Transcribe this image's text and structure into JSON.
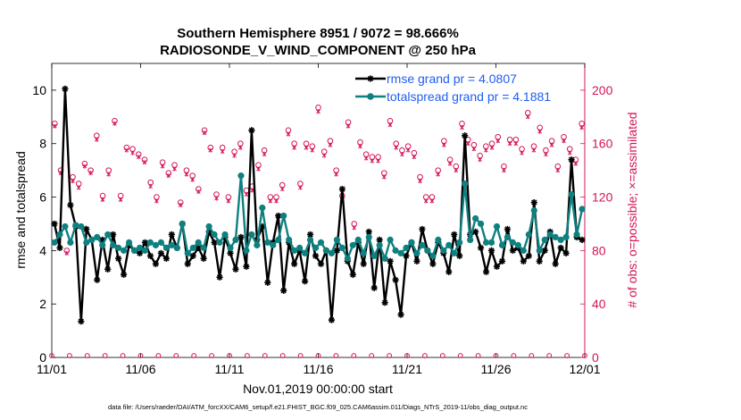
{
  "chart_data": {
    "type": "line",
    "title_line1": "Southern Hemisphere 8951 / 9072 = 98.666%",
    "title_line2": "RADIOSONDE_V_WIND_COMPONENT @ 250 hPa",
    "xlabel": "Nov.01,2019 00:00:00 start",
    "ylabel": "rmse and totalspread",
    "y2label": "# of obs: o=possible; ×=assimilated",
    "footnote": "data file: /Users/raeder/DAI/ATM_forcXX/CAM6_setup/f.e21.FHIST_BGC.f09_025.CAM6assim.011/Diags_NTrS_2019-11/obs_diag_output.nc",
    "xlim": [
      0,
      30
    ],
    "ylim": [
      0,
      11
    ],
    "y2lim": [
      0,
      220
    ],
    "x_ticks": [
      0,
      5,
      10,
      15,
      20,
      25,
      30
    ],
    "x_tick_labels": [
      "11/01",
      "11/06",
      "11/11",
      "11/16",
      "11/21",
      "11/26",
      "12/01"
    ],
    "y_ticks": [
      0,
      2,
      4,
      6,
      8,
      10
    ],
    "y_tick_labels": [
      "0",
      "2",
      "4",
      "6",
      "8",
      "10"
    ],
    "y2_ticks": [
      0,
      40,
      80,
      120,
      160,
      200
    ],
    "y2_tick_labels": [
      "0",
      "40",
      "80",
      "120",
      "160",
      "200"
    ],
    "legend": [
      {
        "label": "rmse grand pr = 4.0807",
        "color": "#000000",
        "marker": "star"
      },
      {
        "label": "totalspread grand pr = 4.1881",
        "color": "#0f8080",
        "marker": "circle"
      }
    ],
    "series": [
      {
        "name": "rmse",
        "color": "#000000",
        "values": [
          5.0,
          4.1,
          10.05,
          5.7,
          4.9,
          1.35,
          4.8,
          4.4,
          2.9,
          4.4,
          3.3,
          4.6,
          3.7,
          3.1,
          4.2,
          4.0,
          3.9,
          4.3,
          3.8,
          3.5,
          3.9,
          3.7,
          4.6,
          4.1,
          5.0,
          3.5,
          3.8,
          4.1,
          3.7,
          4.7,
          4.3,
          3.0,
          4.5,
          3.9,
          3.3,
          4.5,
          3.4,
          8.5,
          4.4,
          4.9,
          2.8,
          4.3,
          5.3,
          2.5,
          4.3,
          3.5,
          4.0,
          2.85,
          4.6,
          3.8,
          3.5,
          4.0,
          1.4,
          4.0,
          6.3,
          3.6,
          3.1,
          4.3,
          3.5,
          4.7,
          2.6,
          4.4,
          2.05,
          3.6,
          2.9,
          1.6,
          3.8,
          4.3,
          3.6,
          4.8,
          4.0,
          3.5,
          4.3,
          3.9,
          3.2,
          4.6,
          3.8,
          8.3,
          4.6,
          4.7,
          4.1,
          3.2,
          4.0,
          3.4,
          3.6,
          4.8,
          4.0,
          4.1,
          3.6,
          3.8,
          5.8,
          3.6,
          4.0,
          4.7,
          3.5,
          4.1,
          3.9,
          7.4,
          4.5,
          4.4
        ]
      },
      {
        "name": "totalspread",
        "color": "#0f8080",
        "values": [
          4.3,
          4.6,
          4.9,
          4.3,
          4.95,
          4.9,
          4.3,
          4.4,
          4.5,
          4.2,
          4.6,
          4.2,
          4.1,
          4.0,
          4.3,
          4.0,
          4.1,
          4.0,
          4.3,
          4.2,
          4.3,
          4.1,
          4.2,
          4.1,
          5.0,
          3.9,
          4.1,
          4.3,
          4.1,
          4.9,
          4.6,
          4.3,
          4.6,
          4.1,
          4.4,
          6.8,
          4.0,
          4.6,
          4.2,
          5.6,
          4.3,
          4.2,
          4.4,
          5.3,
          4.4,
          4.0,
          4.1,
          3.9,
          4.4,
          4.1,
          4.3,
          4.0,
          3.9,
          4.4,
          4.1,
          3.7,
          4.2,
          4.4,
          3.9,
          4.5,
          3.8,
          4.2,
          3.7,
          4.4,
          4.0,
          3.9,
          4.1,
          4.3,
          3.9,
          4.2,
          4.0,
          3.8,
          4.4,
          4.0,
          4.2,
          3.9,
          4.3,
          6.5,
          4.4,
          5.2,
          5.0,
          4.3,
          4.3,
          4.9,
          4.2,
          4.5,
          4.3,
          4.2,
          4.0,
          4.6,
          5.5,
          4.0,
          4.4,
          4.6,
          4.5,
          4.4,
          4.5,
          6.1,
          4.6,
          5.55
        ]
      }
    ],
    "obs_possible": {
      "name": "possible",
      "color": "#d4145a",
      "marker": "circle",
      "values": [
        175,
        140,
        80,
        135,
        130,
        145,
        140,
        166,
        121,
        140,
        177,
        121,
        157,
        156,
        152,
        148,
        131,
        120,
        146,
        138,
        144,
        116,
        140,
        136,
        126,
        170,
        157,
        122,
        157,
        120,
        154,
        160,
        125,
        128,
        144,
        155,
        120,
        120,
        129,
        170,
        160,
        130,
        160,
        158,
        187,
        154,
        162,
        140,
        121,
        176,
        100,
        161,
        152,
        150,
        150,
        138,
        177,
        160,
        155,
        158,
        153,
        135,
        120,
        120,
        140,
        162,
        148,
        143,
        175,
        163,
        159,
        151,
        158,
        160,
        165,
        143,
        163,
        163,
        156,
        183,
        158,
        172,
        155,
        162,
        143,
        165,
        156,
        148,
        175
      ]
    },
    "obs_assimilated": {
      "name": "assimilated",
      "color": "#d4145a",
      "marker": "x",
      "values": [
        173,
        138,
        78,
        132,
        127,
        143,
        138,
        163,
        118,
        137,
        175,
        118,
        155,
        153,
        150,
        146,
        128,
        117,
        143,
        136,
        141,
        114,
        137,
        133,
        124,
        168,
        155,
        119,
        154,
        117,
        151,
        157,
        122,
        125,
        141,
        152,
        117,
        117,
        126,
        167,
        157,
        127,
        157,
        155,
        184,
        151,
        159,
        137,
        118,
        173,
        97,
        158,
        149,
        147,
        147,
        135,
        174,
        157,
        152,
        155,
        150,
        132,
        117,
        117,
        137,
        159,
        145,
        140,
        172,
        160,
        156,
        148,
        155,
        157,
        162,
        140,
        160,
        160,
        153,
        180,
        155,
        169,
        152,
        159,
        140,
        162,
        153,
        145,
        172
      ]
    }
  }
}
